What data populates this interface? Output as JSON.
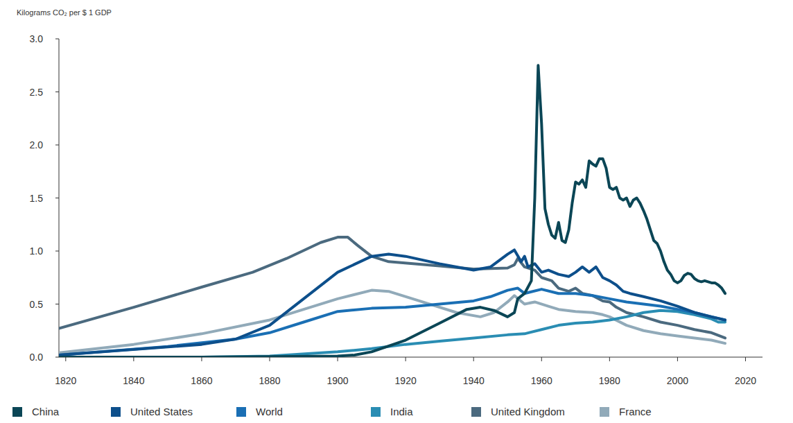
{
  "chart_data": {
    "type": "line",
    "y_label": "Kilograms CO₂ per $ 1 GDP",
    "xlim": [
      1818,
      2025
    ],
    "xticks": [
      1820,
      1840,
      1860,
      1880,
      1900,
      1920,
      1940,
      1960,
      1980,
      2000,
      2020
    ],
    "ylim": [
      0,
      3
    ],
    "yticks": [
      {
        "value": 0,
        "label": "0.0"
      },
      0.5,
      {
        "value": 1,
        "label": "1.0"
      },
      1.5,
      {
        "value": 2,
        "label": "2.0"
      },
      2.5,
      {
        "value": 3,
        "label": "3.0"
      }
    ],
    "grid": false,
    "legend": "bottom",
    "series": [
      {
        "name": "China",
        "color": "#0b4656",
        "x": [
          1818,
          1860,
          1900,
          1905,
          1910,
          1920,
          1930,
          1938,
          1942,
          1946,
          1950,
          1952,
          1953,
          1955,
          1957,
          1958,
          1959,
          1960,
          1961,
          1962,
          1963,
          1964,
          1965,
          1966,
          1967,
          1968,
          1969,
          1970,
          1971,
          1972,
          1973,
          1974,
          1975,
          1976,
          1977,
          1978,
          1979,
          1980,
          1981,
          1982,
          1983,
          1984,
          1985,
          1986,
          1987,
          1988,
          1989,
          1990,
          1991,
          1992,
          1993,
          1994,
          1995,
          1996,
          1997,
          1998,
          1999,
          2000,
          2001,
          2002,
          2003,
          2004,
          2005,
          2006,
          2007,
          2008,
          2010,
          2011,
          2012,
          2013,
          2014
        ],
        "values": [
          0,
          0,
          0.01,
          0.02,
          0.05,
          0.16,
          0.32,
          0.45,
          0.47,
          0.44,
          0.38,
          0.42,
          0.55,
          0.6,
          0.72,
          1.5,
          2.75,
          2.2,
          1.4,
          1.25,
          1.15,
          1.12,
          1.27,
          1.1,
          1.08,
          1.2,
          1.45,
          1.65,
          1.63,
          1.67,
          1.6,
          1.85,
          1.82,
          1.8,
          1.87,
          1.87,
          1.78,
          1.6,
          1.58,
          1.6,
          1.5,
          1.48,
          1.5,
          1.42,
          1.48,
          1.5,
          1.45,
          1.38,
          1.3,
          1.2,
          1.1,
          1.07,
          1.0,
          0.9,
          0.82,
          0.78,
          0.72,
          0.7,
          0.72,
          0.77,
          0.79,
          0.78,
          0.74,
          0.72,
          0.71,
          0.72,
          0.7,
          0.7,
          0.68,
          0.65,
          0.6
        ]
      },
      {
        "name": "United States",
        "color": "#0d4f8b",
        "x": [
          1818,
          1860,
          1870,
          1880,
          1890,
          1900,
          1910,
          1915,
          1920,
          1930,
          1940,
          1945,
          1950,
          1952,
          1954,
          1955,
          1956,
          1958,
          1960,
          1962,
          1965,
          1968,
          1970,
          1972,
          1974,
          1976,
          1978,
          1980,
          1982,
          1984,
          1986,
          1990,
          1995,
          2000,
          2005,
          2010,
          2014
        ],
        "values": [
          0.02,
          0.12,
          0.17,
          0.3,
          0.55,
          0.8,
          0.95,
          0.97,
          0.95,
          0.88,
          0.82,
          0.85,
          0.97,
          1.01,
          0.9,
          0.95,
          0.85,
          0.88,
          0.8,
          0.82,
          0.78,
          0.76,
          0.8,
          0.85,
          0.8,
          0.85,
          0.75,
          0.72,
          0.68,
          0.62,
          0.6,
          0.57,
          0.53,
          0.48,
          0.42,
          0.38,
          0.35
        ]
      },
      {
        "name": "World",
        "color": "#1a6fb4",
        "x": [
          1818,
          1850,
          1870,
          1880,
          1890,
          1900,
          1910,
          1920,
          1930,
          1940,
          1945,
          1950,
          1953,
          1955,
          1960,
          1965,
          1970,
          1975,
          1980,
          1985,
          1990,
          1995,
          2000,
          2005,
          2010,
          2014
        ],
        "values": [
          0.02,
          0.1,
          0.17,
          0.23,
          0.33,
          0.43,
          0.46,
          0.47,
          0.5,
          0.53,
          0.57,
          0.63,
          0.65,
          0.6,
          0.64,
          0.6,
          0.6,
          0.58,
          0.55,
          0.52,
          0.5,
          0.48,
          0.45,
          0.42,
          0.38,
          0.35
        ]
      },
      {
        "name": "India",
        "color": "#2a8db3",
        "x": [
          1818,
          1860,
          1880,
          1900,
          1910,
          1920,
          1930,
          1940,
          1950,
          1955,
          1960,
          1965,
          1970,
          1975,
          1980,
          1985,
          1990,
          1995,
          2000,
          2005,
          2010,
          2012,
          2014
        ],
        "values": [
          0,
          0,
          0.01,
          0.05,
          0.08,
          0.12,
          0.15,
          0.18,
          0.21,
          0.22,
          0.26,
          0.3,
          0.32,
          0.33,
          0.35,
          0.38,
          0.42,
          0.44,
          0.43,
          0.4,
          0.36,
          0.33,
          0.33
        ]
      },
      {
        "name": "United Kingdom",
        "color": "#4b6a7f",
        "x": [
          1818,
          1840,
          1860,
          1875,
          1885,
          1895,
          1900,
          1903,
          1906,
          1910,
          1915,
          1930,
          1940,
          1950,
          1952,
          1953,
          1955,
          1958,
          1960,
          1963,
          1965,
          1968,
          1970,
          1972,
          1975,
          1978,
          1980,
          1982,
          1985,
          1990,
          1995,
          2000,
          2005,
          2010,
          2014
        ],
        "values": [
          0.27,
          0.47,
          0.66,
          0.8,
          0.93,
          1.08,
          1.13,
          1.13,
          1.05,
          0.95,
          0.9,
          0.86,
          0.83,
          0.84,
          0.87,
          0.93,
          0.85,
          0.82,
          0.75,
          0.72,
          0.65,
          0.62,
          0.65,
          0.6,
          0.58,
          0.53,
          0.52,
          0.47,
          0.42,
          0.38,
          0.33,
          0.3,
          0.26,
          0.23,
          0.18
        ]
      },
      {
        "name": "France",
        "color": "#91aab9",
        "x": [
          1818,
          1840,
          1860,
          1880,
          1890,
          1900,
          1910,
          1915,
          1925,
          1935,
          1942,
          1946,
          1950,
          1952,
          1955,
          1958,
          1962,
          1965,
          1970,
          1975,
          1978,
          1980,
          1985,
          1990,
          1995,
          2000,
          2005,
          2010,
          2014
        ],
        "values": [
          0.04,
          0.12,
          0.22,
          0.35,
          0.45,
          0.55,
          0.63,
          0.62,
          0.52,
          0.42,
          0.38,
          0.42,
          0.52,
          0.58,
          0.5,
          0.52,
          0.48,
          0.45,
          0.43,
          0.42,
          0.4,
          0.38,
          0.3,
          0.25,
          0.22,
          0.2,
          0.18,
          0.16,
          0.13
        ]
      }
    ]
  }
}
